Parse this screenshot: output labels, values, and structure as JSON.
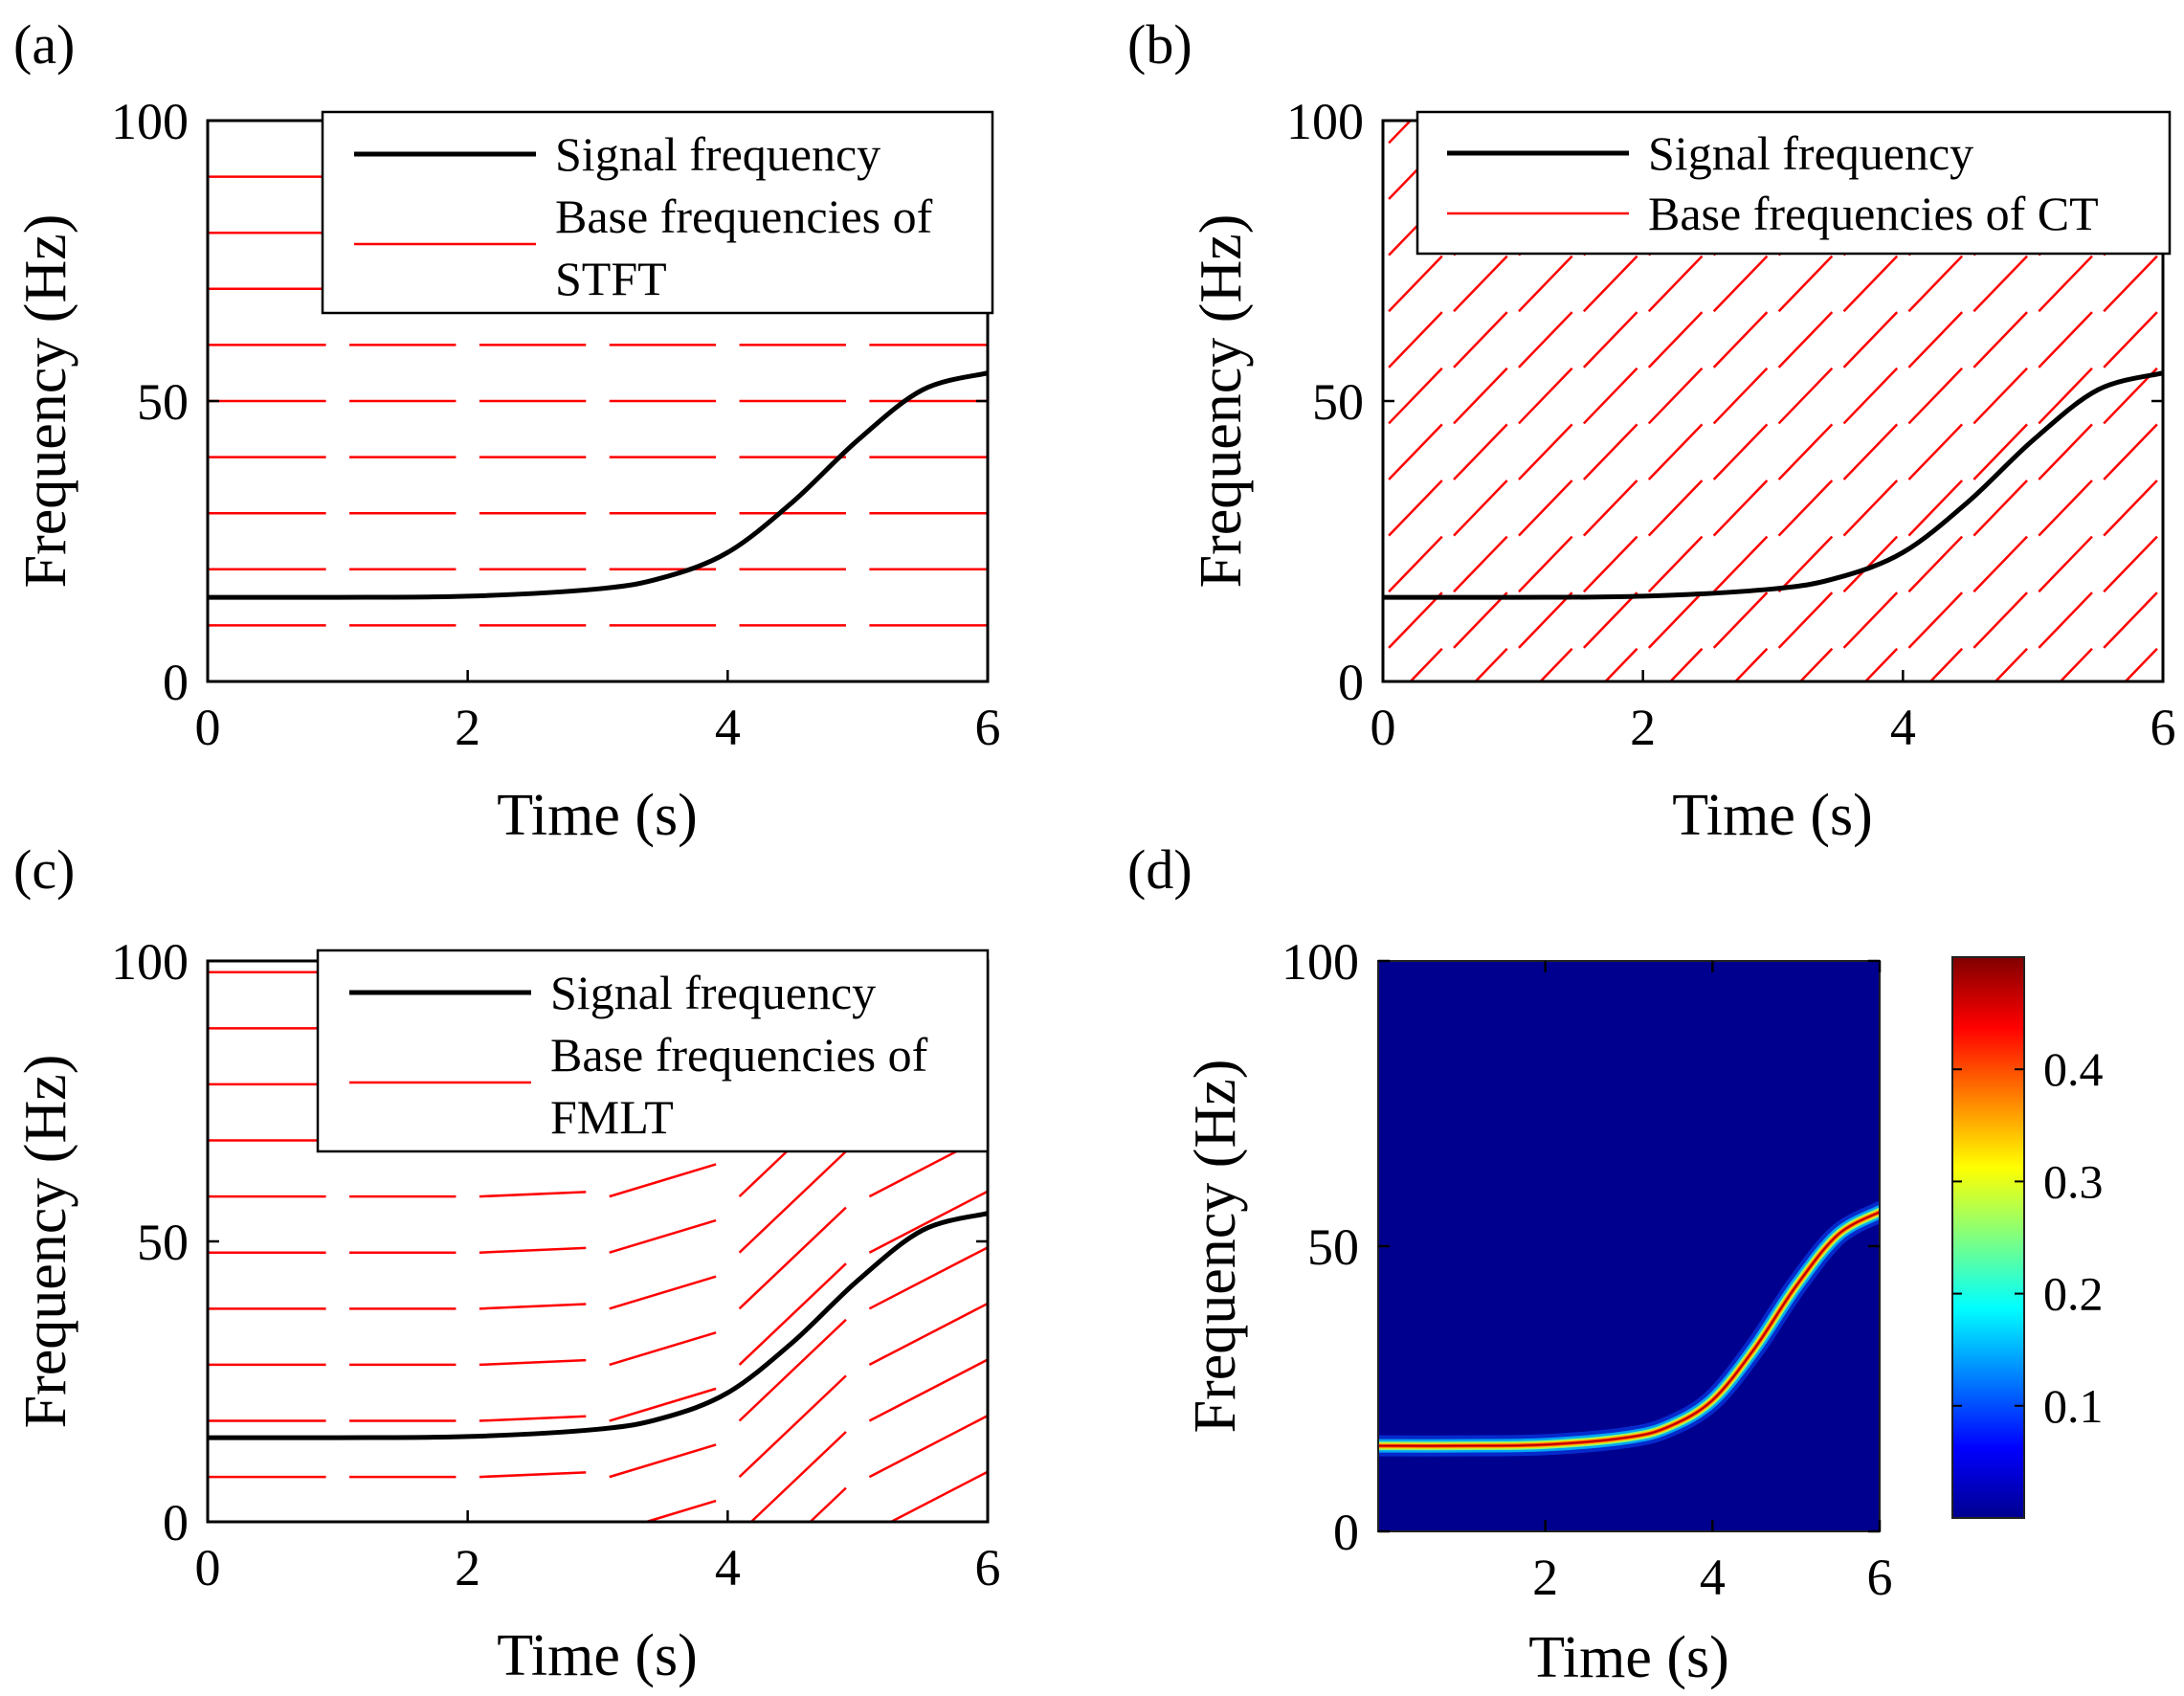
{
  "chart_data": [
    {
      "panel_label": "(a)",
      "type": "line",
      "xlabel": "Time (s)",
      "ylabel": "Frequency (Hz)",
      "xlim": [
        0,
        6
      ],
      "ylim": [
        0,
        100
      ],
      "xticks": [
        "0",
        "2",
        "4",
        "6"
      ],
      "yticks": [
        "0",
        "50",
        "100"
      ],
      "legend": {
        "position": "top-right",
        "entries": [
          {
            "label_lines": [
              "Signal frequency"
            ],
            "color": "#000000"
          },
          {
            "label_lines": [
              "Base frequencies of",
              "STFT"
            ],
            "color": "#ff0000"
          }
        ]
      },
      "signal_frequency": {
        "x": [
          0,
          1,
          2,
          3,
          3.5,
          4,
          4.5,
          5,
          5.5,
          6
        ],
        "y": [
          15,
          15,
          15.2,
          16.5,
          18.5,
          23,
          32,
          43,
          52,
          55
        ]
      },
      "base_frequencies": {
        "kind": "stft",
        "segment_edges": [
          0,
          1,
          2,
          3,
          4,
          5,
          6
        ],
        "frequencies": [
          10,
          20,
          30,
          40,
          50,
          60,
          70,
          80,
          90
        ]
      }
    },
    {
      "panel_label": "(b)",
      "type": "line",
      "xlabel": "Time (s)",
      "ylabel": "Frequency (Hz)",
      "xlim": [
        0,
        6
      ],
      "ylim": [
        0,
        100
      ],
      "xticks": [
        "0",
        "2",
        "4",
        "6"
      ],
      "yticks": [
        "0",
        "50",
        "100"
      ],
      "legend": {
        "position": "top-right",
        "entries": [
          {
            "label_lines": [
              "Signal frequency"
            ],
            "color": "#000000"
          },
          {
            "label_lines": [
              "Base frequencies of CT"
            ],
            "color": "#ff0000"
          }
        ]
      },
      "signal_frequency": {
        "x": [
          0,
          1,
          2,
          3,
          3.5,
          4,
          4.5,
          5,
          5.5,
          6
        ],
        "y": [
          15,
          15,
          15.2,
          16.5,
          18.5,
          23,
          32,
          43,
          52,
          55
        ]
      },
      "base_frequencies": {
        "kind": "ct",
        "segment_edges": [
          0,
          0.5,
          1,
          1.5,
          2,
          2.5,
          3,
          3.5,
          4,
          4.5,
          5,
          5.5,
          6
        ],
        "slope": 24,
        "offset_step": 10
      }
    },
    {
      "panel_label": "(c)",
      "type": "line",
      "xlabel": "Time (s)",
      "ylabel": "Frequency (Hz)",
      "xlim": [
        0,
        6
      ],
      "ylim": [
        0,
        100
      ],
      "xticks": [
        "0",
        "2",
        "4",
        "6"
      ],
      "yticks": [
        "0",
        "50",
        "100"
      ],
      "legend": {
        "position": "top-right",
        "entries": [
          {
            "label_lines": [
              "Signal frequency"
            ],
            "color": "#000000"
          },
          {
            "label_lines": [
              "Base frequencies of",
              "FMLT"
            ],
            "color": "#ff0000"
          }
        ]
      },
      "signal_frequency": {
        "x": [
          0,
          1,
          2,
          3,
          3.5,
          4,
          4.5,
          5,
          5.5,
          6
        ],
        "y": [
          15,
          15,
          15.2,
          16.5,
          18.5,
          23,
          32,
          43,
          52,
          55
        ]
      },
      "base_frequencies": {
        "kind": "fmlt",
        "segments": [
          {
            "t0": 0,
            "t1": 1,
            "slope": 0
          },
          {
            "t0": 1,
            "t1": 2,
            "slope": 0
          },
          {
            "t0": 2,
            "t1": 3,
            "slope": 1
          },
          {
            "t0": 3,
            "t1": 4,
            "slope": 7
          },
          {
            "t0": 4,
            "t1": 5,
            "slope": 22
          },
          {
            "t0": 5,
            "t1": 6,
            "slope": 12
          }
        ],
        "frequencies": [
          8,
          18,
          28,
          38,
          48,
          58,
          68,
          78,
          88,
          98
        ]
      }
    },
    {
      "panel_label": "(d)",
      "type": "heatmap",
      "xlabel": "Time (s)",
      "ylabel": "Frequency (Hz)",
      "xlim": [
        0,
        6
      ],
      "ylim": [
        0,
        100
      ],
      "xticks": [
        "2",
        "4",
        "6"
      ],
      "yticks": [
        "0",
        "50",
        "100"
      ],
      "colorbar": {
        "range": [
          0,
          0.5
        ],
        "ticks": [
          "0.1",
          "0.2",
          "0.3",
          "0.4"
        ],
        "colormap": "jet"
      },
      "ridge": {
        "x": [
          0,
          1,
          2,
          3,
          3.5,
          4,
          4.5,
          5,
          5.5,
          6
        ],
        "y": [
          15,
          15,
          15.2,
          16.5,
          18.5,
          23,
          32,
          43,
          52,
          56
        ],
        "peak_value": 0.45
      }
    }
  ]
}
